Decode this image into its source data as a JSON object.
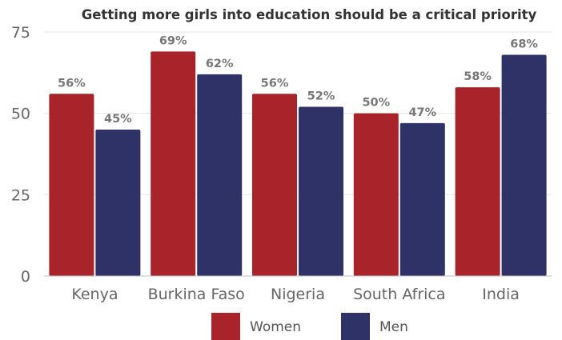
{
  "chart_data": {
    "type": "bar",
    "title": "Getting more girls into education should be a critical priority",
    "categories": [
      "Kenya",
      "Burkina Faso",
      "Nigeria",
      "South Africa",
      "India"
    ],
    "series": [
      {
        "name": "Women",
        "values": [
          56,
          69,
          56,
          50,
          58
        ],
        "labels": [
          "56%",
          "69%",
          "56%",
          "50%",
          "58%"
        ],
        "color": "#a8232a"
      },
      {
        "name": "Men",
        "values": [
          45,
          62,
          52,
          47,
          68
        ],
        "labels": [
          "45%",
          "62%",
          "52%",
          "47%",
          "68%"
        ],
        "color": "#2e3267"
      }
    ],
    "yticks": [
      "0",
      "25",
      "50",
      "75"
    ],
    "ylim": [
      0,
      75
    ],
    "grid": true,
    "legend": "bottom"
  }
}
